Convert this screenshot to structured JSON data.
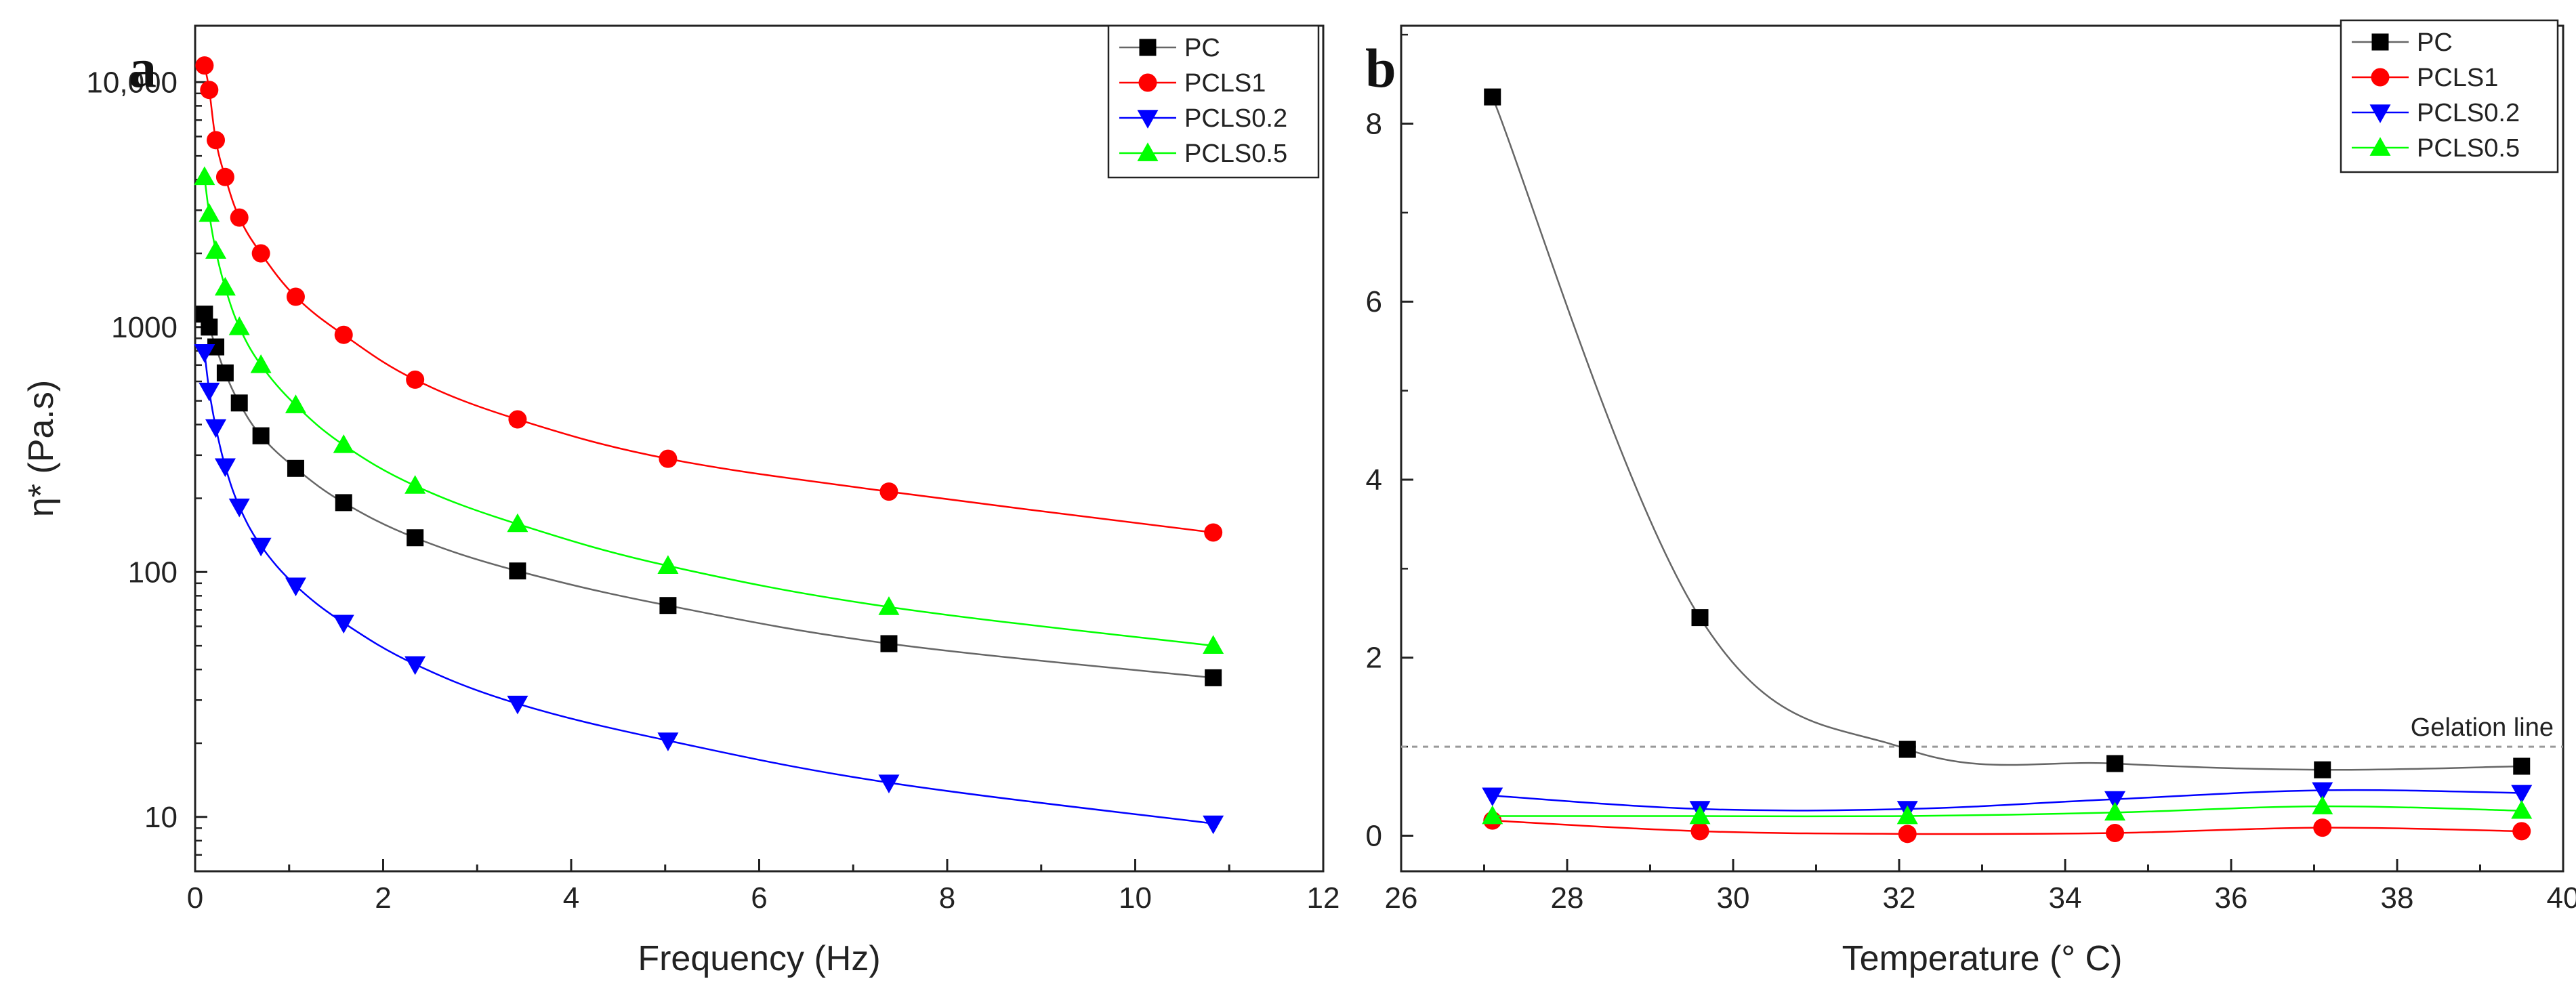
{
  "chart_data": [
    {
      "type": "line",
      "panel_label": "a",
      "xlabel": "Frequency (Hz)",
      "ylabel": "η* (Pa.s)",
      "xscale": "linear",
      "yscale": "log",
      "xlim": [
        0,
        12
      ],
      "ylim": [
        6,
        17000
      ],
      "x_ticks": [
        0,
        2,
        4,
        6,
        8,
        10,
        12
      ],
      "x_tick_labels": [
        "0",
        "2",
        "4",
        "6",
        "8",
        "10",
        "12"
      ],
      "y_ticks": [
        10,
        100,
        1000,
        10000
      ],
      "y_tick_labels": [
        "10",
        "100",
        "1000",
        "10,000"
      ],
      "legend_position": "top-right",
      "series": [
        {
          "name": "PC",
          "color": "#000000",
          "marker": "square",
          "x": [
            0.1,
            0.15,
            0.22,
            0.32,
            0.47,
            0.7,
            1.07,
            1.58,
            2.34,
            3.43,
            5.03,
            7.38,
            10.83
          ],
          "y": [
            1130,
            1000,
            830,
            650,
            490,
            360,
            265,
            192,
            138,
            101,
            73,
            51,
            37
          ]
        },
        {
          "name": "PCLS1",
          "color": "#ff0000",
          "marker": "circle",
          "x": [
            0.1,
            0.15,
            0.22,
            0.32,
            0.47,
            0.7,
            1.07,
            1.58,
            2.34,
            3.43,
            5.03,
            7.38,
            10.83
          ],
          "y": [
            11700,
            9300,
            5800,
            4100,
            2800,
            2000,
            1330,
            930,
            610,
            420,
            290,
            213,
            145
          ]
        },
        {
          "name": "PCLS0.2",
          "color": "#0000ff",
          "marker": "triangle-down",
          "x": [
            0.1,
            0.15,
            0.22,
            0.32,
            0.47,
            0.7,
            1.07,
            1.58,
            2.34,
            3.43,
            5.03,
            7.38,
            10.83
          ],
          "y": [
            790,
            550,
            390,
            270,
            185,
            128,
            88,
            62,
            42,
            29,
            20.5,
            13.8,
            9.4
          ]
        },
        {
          "name": "PCLS0.5",
          "color": "#00ff00",
          "marker": "triangle-up",
          "x": [
            0.1,
            0.15,
            0.22,
            0.32,
            0.47,
            0.7,
            1.07,
            1.58,
            2.34,
            3.43,
            5.03,
            7.38,
            10.83
          ],
          "y": [
            4100,
            2900,
            2050,
            1450,
            1000,
            700,
            480,
            330,
            225,
            157,
            106,
            72,
            50
          ]
        }
      ]
    },
    {
      "type": "line",
      "panel_label": "b",
      "xlabel": "Temperature (° C)",
      "ylabel": "",
      "xscale": "linear",
      "yscale": "linear",
      "xlim": [
        26,
        40
      ],
      "ylim": [
        -0.4,
        9.1
      ],
      "x_ticks": [
        26,
        28,
        30,
        32,
        34,
        36,
        38,
        40
      ],
      "x_tick_labels": [
        "26",
        "28",
        "30",
        "32",
        "34",
        "36",
        "38",
        "40"
      ],
      "y_ticks": [
        0,
        2,
        4,
        6,
        8
      ],
      "y_tick_labels": [
        "0",
        "2",
        "4",
        "6",
        "8"
      ],
      "legend_position": "top-right",
      "reference_line": {
        "label": "Gelation line",
        "y": 1.0,
        "style": "dashed"
      },
      "series": [
        {
          "name": "PC",
          "color": "#000000",
          "marker": "square",
          "x": [
            27.1,
            29.6,
            32.1,
            34.6,
            37.1,
            39.5
          ],
          "y": [
            8.3,
            2.45,
            0.97,
            0.81,
            0.74,
            0.78
          ]
        },
        {
          "name": "PCLS1",
          "color": "#ff0000",
          "marker": "circle",
          "x": [
            27.1,
            29.6,
            32.1,
            34.6,
            37.1,
            39.5
          ],
          "y": [
            0.17,
            0.05,
            0.02,
            0.03,
            0.09,
            0.05
          ]
        },
        {
          "name": "PCLS0.2",
          "color": "#0000ff",
          "marker": "triangle-down",
          "x": [
            27.1,
            29.6,
            32.1,
            34.6,
            37.1,
            39.5
          ],
          "y": [
            0.45,
            0.3,
            0.3,
            0.41,
            0.51,
            0.48
          ]
        },
        {
          "name": "PCLS0.5",
          "color": "#00ff00",
          "marker": "triangle-up",
          "x": [
            27.1,
            29.6,
            32.1,
            34.6,
            37.1,
            39.5
          ],
          "y": [
            0.22,
            0.22,
            0.22,
            0.26,
            0.33,
            0.28
          ]
        }
      ]
    }
  ]
}
